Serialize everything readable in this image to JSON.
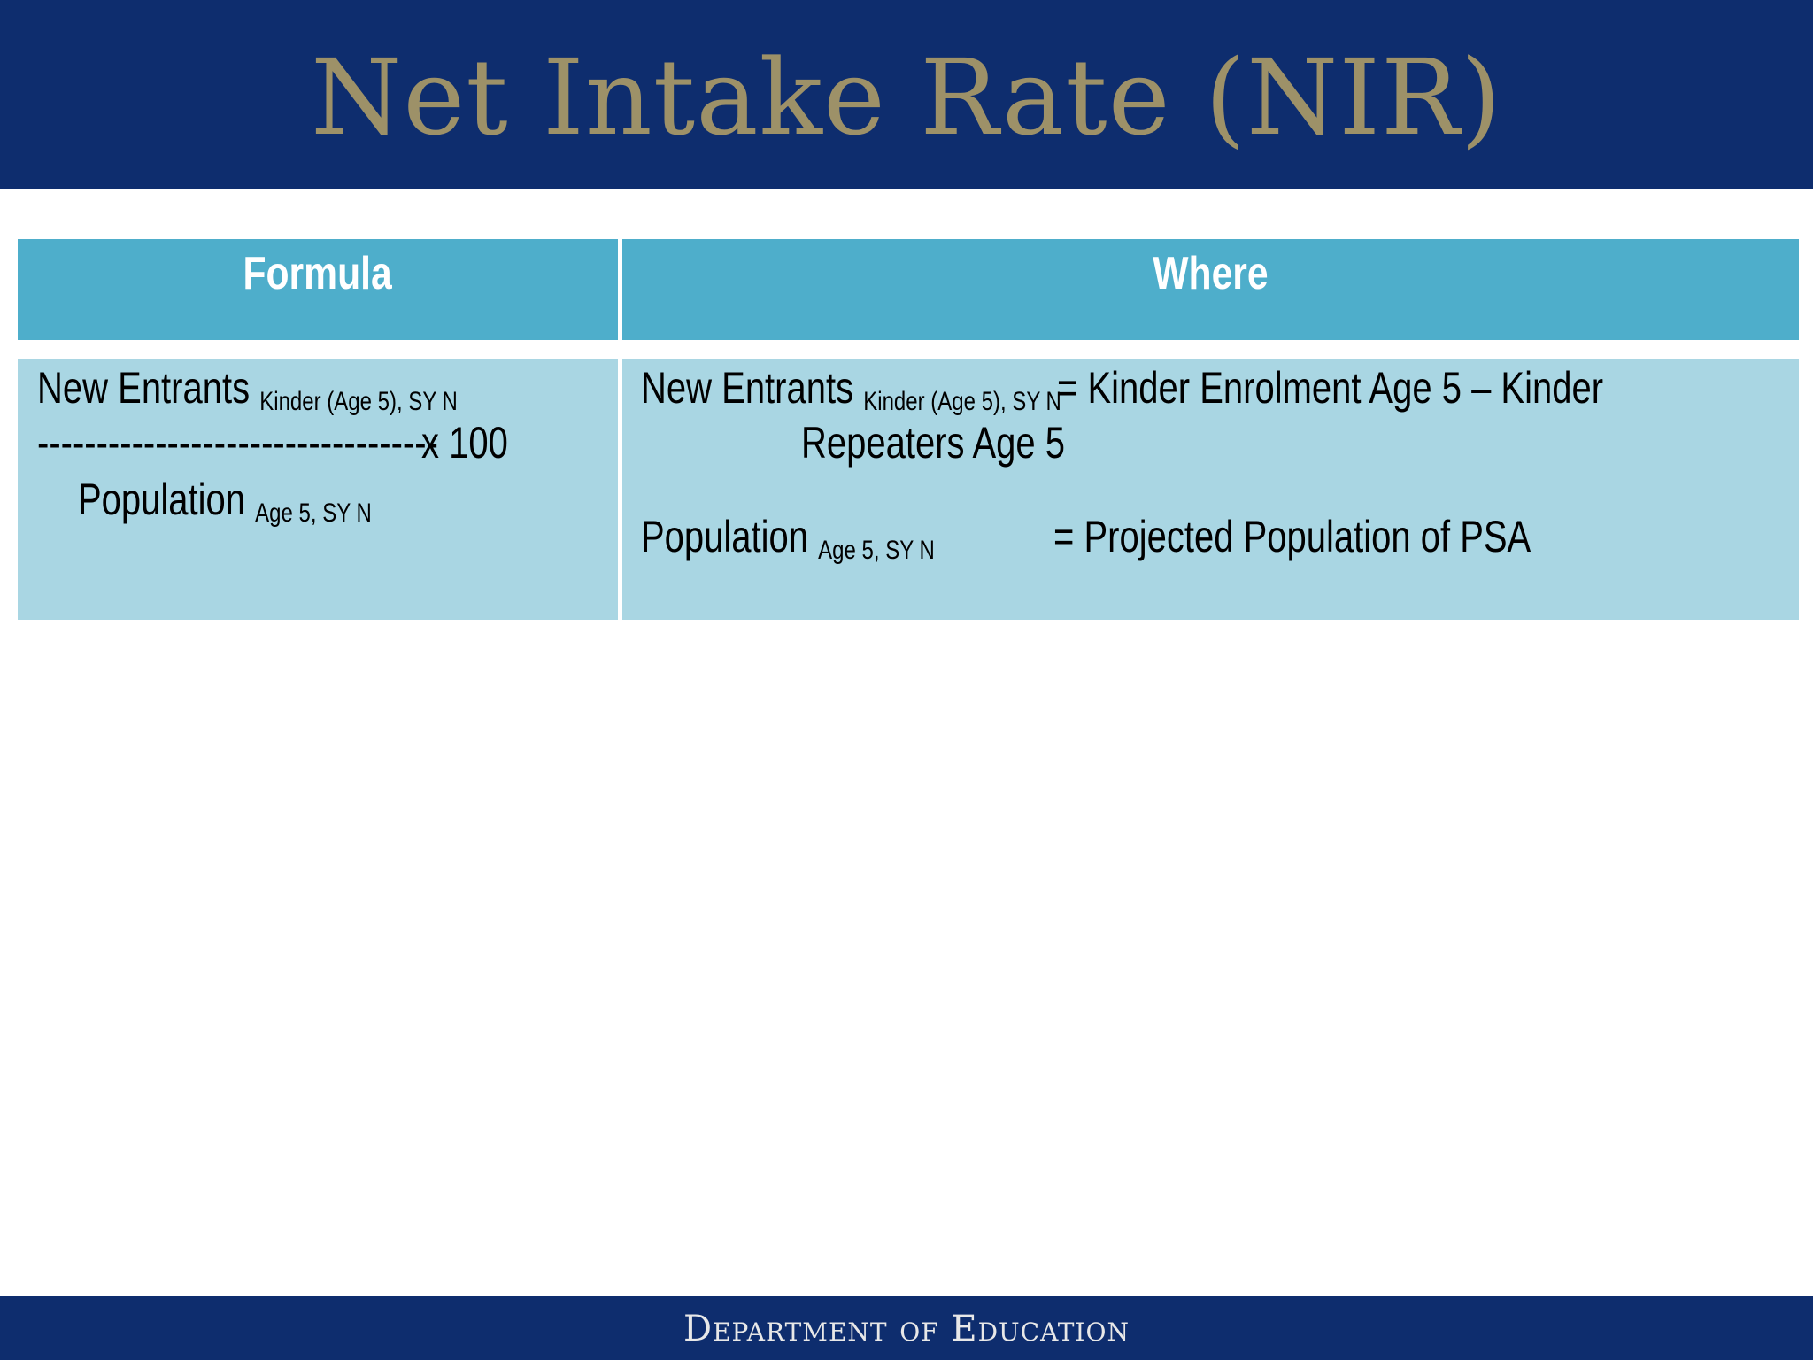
{
  "slide": {
    "title": "Net Intake Rate (NIR)"
  },
  "table": {
    "headers": [
      "Formula",
      "Where"
    ],
    "formula": {
      "numerator": "New Entrants",
      "numerator_subscript": "Kinder (Age 5), SY N",
      "divider": "----------------------------------",
      "multiplier": "x  100",
      "denominator": "Population",
      "denominator_subscript": "Age 5, SY N"
    },
    "where": {
      "def1_term": "New Entrants",
      "def1_subscript": "Kinder (Age 5), SY N",
      "def1_value_line1": "= Kinder Enrolment Age 5 – Kinder",
      "def1_value_line2": "Repeaters Age 5",
      "def2_term": "Population",
      "def2_subscript": "Age 5, SY N",
      "def2_value": "= Projected Population of PSA"
    }
  },
  "footer": {
    "text": "Department of Education"
  },
  "colors": {
    "header_band": "#0e2d6e",
    "title_gold": "#9d9168",
    "table_header": "#4eaecb",
    "table_cell": "#a9d6e3"
  }
}
